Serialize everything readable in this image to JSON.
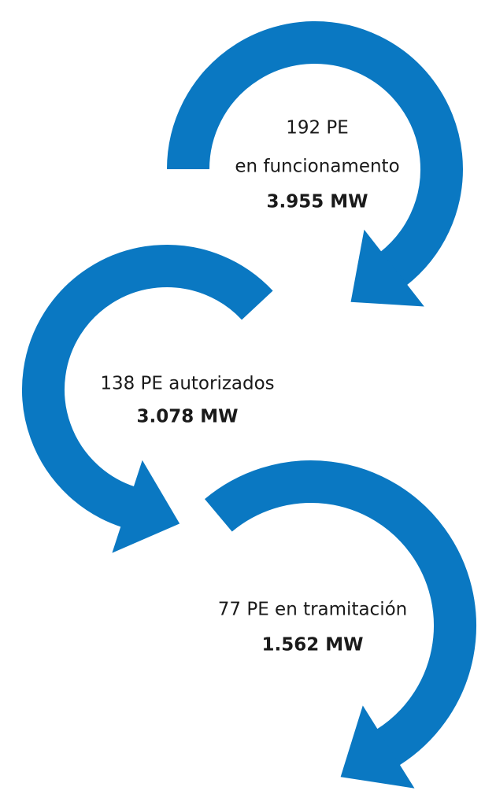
{
  "items": [
    {
      "lines": [
        "192 PE",
        "en funcionamento"
      ],
      "value": "3.955 MW"
    },
    {
      "lines": [
        "138 PE autorizados"
      ],
      "value": "3.078 MW"
    },
    {
      "lines": [
        "77 PE en tramitación"
      ],
      "value": "1.562 MW"
    }
  ]
}
